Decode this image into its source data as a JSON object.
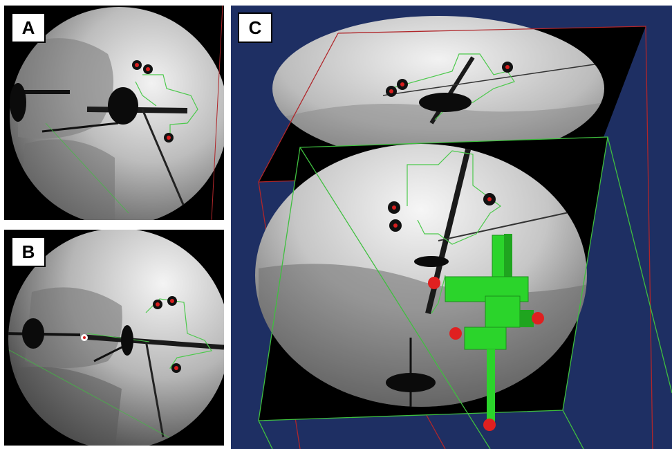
{
  "panels": [
    {
      "id": "A",
      "label": "A"
    },
    {
      "id": "B",
      "label": "B"
    },
    {
      "id": "C",
      "label": "C"
    }
  ],
  "colors": {
    "background": "#ffffff",
    "scene3d": "#1e2f63",
    "contour": "#4cc94c",
    "marker": "#d81e1e",
    "frame_red": "#b0262a",
    "frame_green": "#3fbf3f",
    "instrument": "#2bd42b"
  }
}
